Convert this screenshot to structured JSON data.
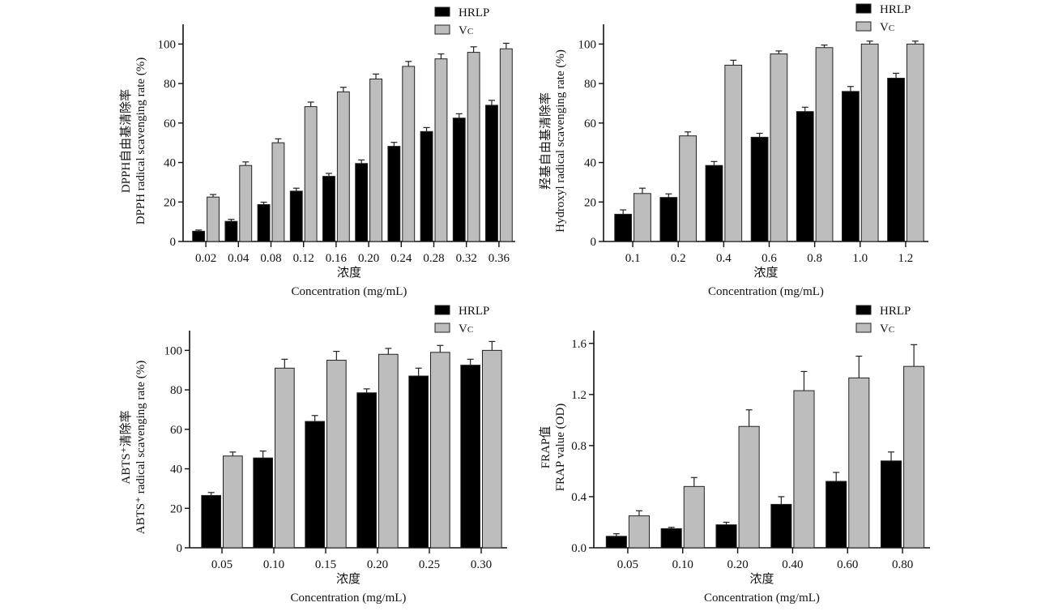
{
  "colors": {
    "HRLP": "#000000",
    "VC": "#bdbdbd",
    "axis": "#111111"
  },
  "chart_data": [
    {
      "type": "bar",
      "ylabel_cn": "DPPH自由基清除率",
      "ylabel": "DPPH radical scavenging rate (%)",
      "xlabel_cn": "浓度",
      "xlabel": "Concentration (mg/mL)",
      "categories": [
        "0.02",
        "0.04",
        "0.08",
        "0.12",
        "0.16",
        "0.20",
        "0.24",
        "0.28",
        "0.32",
        "0.36"
      ],
      "ylim": [
        0,
        110
      ],
      "yticks": [
        0,
        20,
        40,
        60,
        80,
        100
      ],
      "ytick_labels": [
        "0",
        "20",
        "40",
        "60",
        "80",
        "100"
      ],
      "legend": "top-right",
      "series": [
        {
          "name": "HRLP",
          "values": [
            5.2,
            10.2,
            18.7,
            25.5,
            33.0,
            39.5,
            48.2,
            55.7,
            62.5,
            69.0
          ],
          "errors": [
            0.6,
            1.0,
            1.2,
            1.5,
            1.5,
            1.8,
            2.0,
            2.0,
            2.2,
            2.5
          ]
        },
        {
          "name": "VC",
          "values": [
            22.5,
            38.5,
            50.0,
            68.3,
            75.8,
            82.3,
            88.7,
            92.5,
            95.8,
            97.6
          ],
          "errors": [
            1.3,
            1.8,
            2.0,
            2.3,
            2.3,
            2.5,
            2.5,
            2.5,
            2.8,
            2.8
          ]
        }
      ]
    },
    {
      "type": "bar",
      "ylabel_cn": "羟基自由基清除率",
      "ylabel": "Hydroxyl radical scavenging rate (%)",
      "xlabel_cn": "浓度",
      "xlabel": "Concentration (mg/mL)",
      "categories": [
        "0.1",
        "0.2",
        "0.4",
        "0.6",
        "0.8",
        "1.0",
        "1.2"
      ],
      "ylim": [
        0,
        110
      ],
      "yticks": [
        0,
        20,
        40,
        60,
        80,
        100
      ],
      "ytick_labels": [
        "0",
        "20",
        "40",
        "60",
        "80",
        "100"
      ],
      "legend": "top-right",
      "series": [
        {
          "name": "HRLP",
          "values": [
            13.8,
            22.3,
            38.5,
            52.8,
            65.8,
            76.0,
            82.7
          ],
          "errors": [
            2.2,
            1.8,
            2.0,
            2.0,
            2.2,
            2.5,
            2.5
          ]
        },
        {
          "name": "VC",
          "values": [
            24.3,
            53.5,
            89.3,
            95.0,
            98.2,
            100.0,
            100.0
          ],
          "errors": [
            2.7,
            2.0,
            2.5,
            1.5,
            1.3,
            1.5,
            1.5
          ]
        }
      ]
    },
    {
      "type": "bar",
      "ylabel_cn": "ABTS⁺清除率",
      "ylabel": "ABTS⁺ radical scavenging rate (%)",
      "xlabel_cn": "浓度",
      "xlabel": "Concentration (mg/mL)",
      "categories": [
        "0.05",
        "0.10",
        "0.15",
        "0.20",
        "0.25",
        "0.30"
      ],
      "ylim": [
        0,
        110
      ],
      "yticks": [
        0,
        20,
        40,
        60,
        80,
        100
      ],
      "ytick_labels": [
        "0",
        "20",
        "40",
        "60",
        "80",
        "100"
      ],
      "legend": "top-right",
      "series": [
        {
          "name": "HRLP",
          "values": [
            26.5,
            45.5,
            64.0,
            78.5,
            87.0,
            92.5
          ],
          "errors": [
            1.5,
            3.5,
            3.0,
            2.0,
            4.0,
            3.0
          ]
        },
        {
          "name": "VC",
          "values": [
            46.5,
            91.0,
            95.0,
            98.0,
            99.0,
            100.0
          ],
          "errors": [
            2.0,
            4.5,
            4.5,
            3.0,
            3.5,
            4.5
          ]
        }
      ]
    },
    {
      "type": "bar",
      "ylabel_cn": "FRAP值",
      "ylabel": "FRAP value (OD)",
      "xlabel_cn": "浓度",
      "xlabel": "Concentration (mg/mL)",
      "categories": [
        "0.05",
        "0.10",
        "0.20",
        "0.40",
        "0.60",
        "0.80"
      ],
      "ylim": [
        0,
        1.7
      ],
      "yticks": [
        0,
        0.4,
        0.8,
        1.2,
        1.6
      ],
      "ytick_labels": [
        "0.0",
        "0.4",
        "0.8",
        "1.2",
        "1.6"
      ],
      "legend": "top-right",
      "series": [
        {
          "name": "HRLP",
          "values": [
            0.09,
            0.15,
            0.18,
            0.34,
            0.52,
            0.68
          ],
          "errors": [
            0.02,
            0.01,
            0.02,
            0.06,
            0.07,
            0.07
          ]
        },
        {
          "name": "VC",
          "values": [
            0.25,
            0.48,
            0.95,
            1.23,
            1.33,
            1.42
          ],
          "errors": [
            0.04,
            0.07,
            0.13,
            0.15,
            0.17,
            0.17
          ]
        }
      ]
    }
  ]
}
